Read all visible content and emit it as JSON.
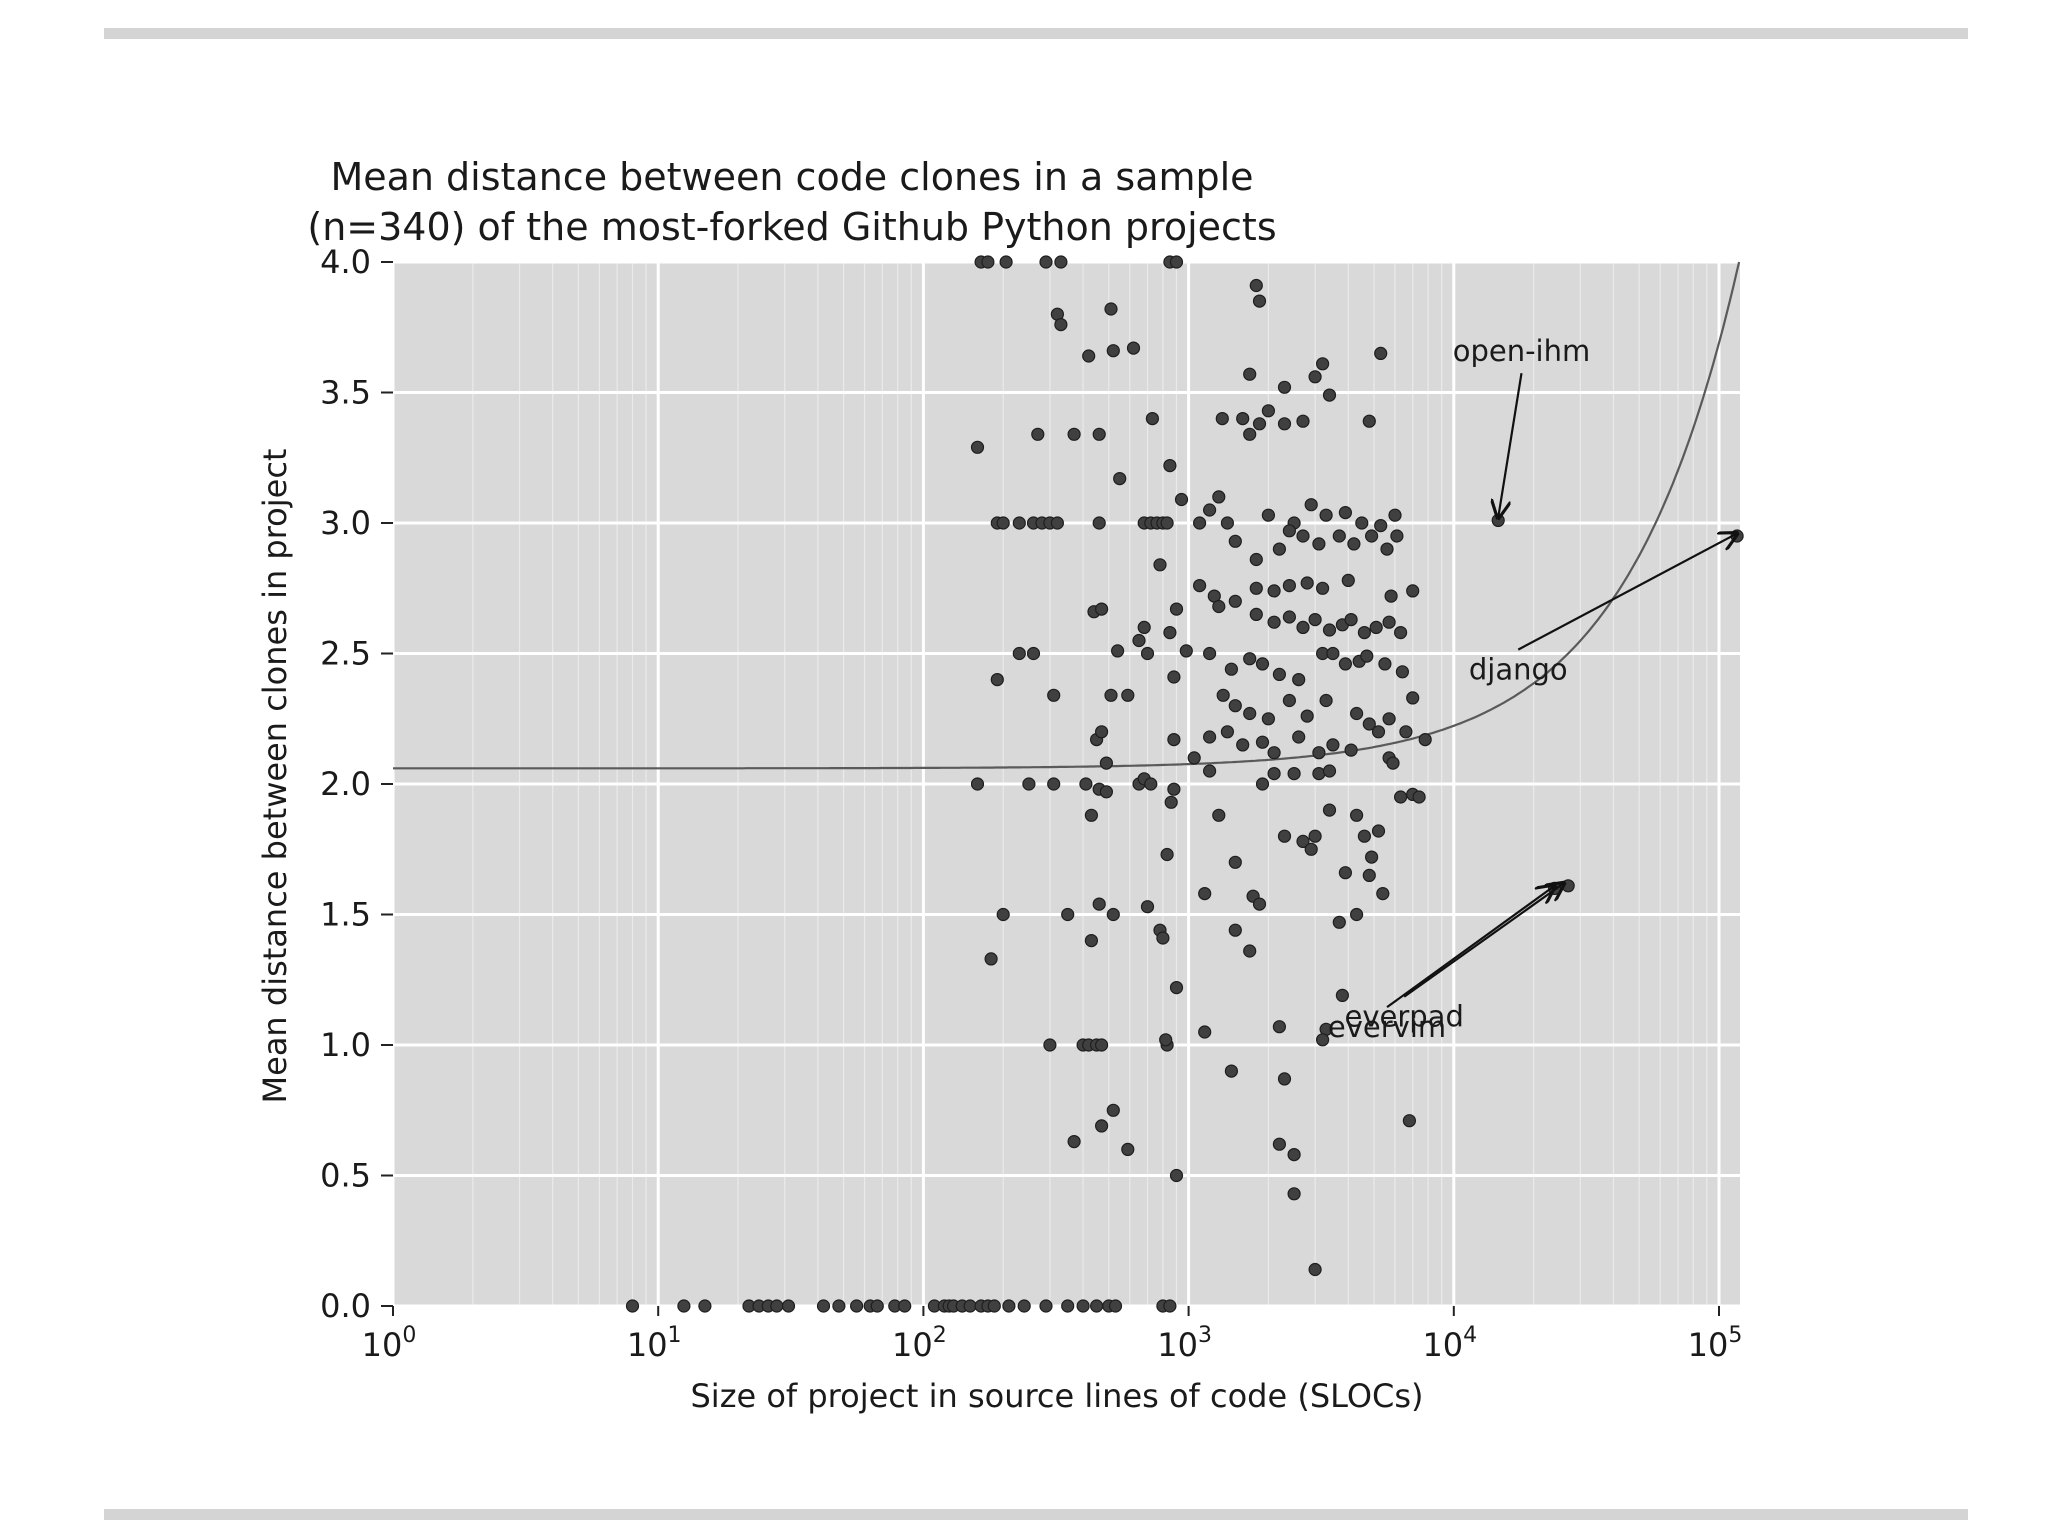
{
  "page": {
    "background": "#ffffff",
    "rule_color": "#d4d4d4"
  },
  "chart_data": {
    "type": "scatter",
    "title_lines": [
      "Mean distance between code clones in a sample",
      "(n=340) of the most-forked Github Python projects"
    ],
    "xlabel": "Size of project in source lines of code (SLOCs)",
    "ylabel": "Mean distance between clones in project",
    "xscale": "log",
    "xlim": [
      1,
      120000
    ],
    "ylim": [
      0,
      4
    ],
    "x_ticks": [
      {
        "value": 1,
        "base": "10",
        "exp": "0"
      },
      {
        "value": 10,
        "base": "10",
        "exp": "1"
      },
      {
        "value": 100,
        "base": "10",
        "exp": "2"
      },
      {
        "value": 1000,
        "base": "10",
        "exp": "3"
      },
      {
        "value": 10000,
        "base": "10",
        "exp": "4"
      },
      {
        "value": 100000,
        "base": "10",
        "exp": "5"
      }
    ],
    "y_ticks": [
      "0.0",
      "0.5",
      "1.0",
      "1.5",
      "2.0",
      "2.5",
      "3.0",
      "3.5",
      "4.0"
    ],
    "grid": true,
    "colors": {
      "plot_bg": "#d9d9d9",
      "grid": "#ffffff",
      "marker": "#404040",
      "marker_edge": "#1e1e1e",
      "curve": "#5a5a5a"
    },
    "trend_curve": {
      "intercept": 2.06,
      "slope": 1.63e-05
    },
    "points": [
      [
        8,
        0
      ],
      [
        12.5,
        0
      ],
      [
        15,
        0
      ],
      [
        22,
        0
      ],
      [
        24,
        0
      ],
      [
        26,
        0
      ],
      [
        28,
        0
      ],
      [
        31,
        0
      ],
      [
        42,
        0
      ],
      [
        48,
        0
      ],
      [
        56,
        0
      ],
      [
        63,
        0
      ],
      [
        67,
        0
      ],
      [
        78,
        0
      ],
      [
        85,
        0
      ],
      [
        110,
        0
      ],
      [
        120,
        0
      ],
      [
        125,
        0
      ],
      [
        130,
        0
      ],
      [
        140,
        0
      ],
      [
        150,
        0
      ],
      [
        165,
        0
      ],
      [
        175,
        0
      ],
      [
        185,
        0
      ],
      [
        210,
        0
      ],
      [
        240,
        0
      ],
      [
        290,
        0
      ],
      [
        350,
        0
      ],
      [
        400,
        0
      ],
      [
        450,
        0
      ],
      [
        500,
        0
      ],
      [
        530,
        0
      ],
      [
        800,
        0
      ],
      [
        850,
        0
      ],
      [
        165,
        4.0
      ],
      [
        175,
        4.0
      ],
      [
        205,
        4.0
      ],
      [
        290,
        4.0
      ],
      [
        330,
        4.0
      ],
      [
        850,
        4.0
      ],
      [
        900,
        4.0
      ],
      [
        1800,
        3.91
      ],
      [
        1850,
        3.85
      ],
      [
        510,
        3.82
      ],
      [
        320,
        3.8
      ],
      [
        330,
        3.76
      ],
      [
        420,
        3.64
      ],
      [
        620,
        3.67
      ],
      [
        3200,
        3.61
      ],
      [
        5300,
        3.65
      ],
      [
        1700,
        3.57
      ],
      [
        2300,
        3.52
      ],
      [
        3000,
        3.56
      ],
      [
        3400,
        3.49
      ],
      [
        520,
        3.66
      ],
      [
        160,
        3.29
      ],
      [
        270,
        3.34
      ],
      [
        370,
        3.34
      ],
      [
        460,
        3.34
      ],
      [
        550,
        3.17
      ],
      [
        730,
        3.4
      ],
      [
        850,
        3.22
      ],
      [
        1340,
        3.4
      ],
      [
        1600,
        3.4
      ],
      [
        1700,
        3.34
      ],
      [
        1850,
        3.38
      ],
      [
        2000,
        3.43
      ],
      [
        2300,
        3.38
      ],
      [
        2700,
        3.39
      ],
      [
        4800,
        3.39
      ],
      [
        190,
        3.0
      ],
      [
        200,
        3.0
      ],
      [
        230,
        3.0
      ],
      [
        260,
        3.0
      ],
      [
        280,
        3.0
      ],
      [
        300,
        3.0
      ],
      [
        320,
        3.0
      ],
      [
        460,
        3.0
      ],
      [
        680,
        3.0
      ],
      [
        720,
        3.0
      ],
      [
        760,
        3.0
      ],
      [
        800,
        3.0
      ],
      [
        830,
        3.0
      ],
      [
        940,
        3.09
      ],
      [
        1100,
        3.0
      ],
      [
        1200,
        3.05
      ],
      [
        1300,
        3.1
      ],
      [
        1400,
        3.0
      ],
      [
        2000,
        3.03
      ],
      [
        2500,
        3.0
      ],
      [
        2900,
        3.07
      ],
      [
        3300,
        3.03
      ],
      [
        3900,
        3.04
      ],
      [
        4500,
        3.0
      ],
      [
        5300,
        2.99
      ],
      [
        6000,
        3.03
      ],
      [
        14700,
        3.01
      ],
      [
        1500,
        2.93
      ],
      [
        1800,
        2.86
      ],
      [
        2200,
        2.9
      ],
      [
        2400,
        2.97
      ],
      [
        2700,
        2.95
      ],
      [
        3100,
        2.92
      ],
      [
        3700,
        2.95
      ],
      [
        4200,
        2.92
      ],
      [
        4900,
        2.95
      ],
      [
        5600,
        2.9
      ],
      [
        6100,
        2.95
      ],
      [
        780,
        2.84
      ],
      [
        1100,
        2.76
      ],
      [
        1250,
        2.72
      ],
      [
        1500,
        2.7
      ],
      [
        1800,
        2.75
      ],
      [
        2100,
        2.74
      ],
      [
        2400,
        2.76
      ],
      [
        2800,
        2.77
      ],
      [
        3200,
        2.75
      ],
      [
        4000,
        2.78
      ],
      [
        5800,
        2.72
      ],
      [
        7000,
        2.74
      ],
      [
        440,
        2.66
      ],
      [
        470,
        2.67
      ],
      [
        680,
        2.6
      ],
      [
        850,
        2.58
      ],
      [
        900,
        2.67
      ],
      [
        1300,
        2.68
      ],
      [
        1800,
        2.65
      ],
      [
        2100,
        2.62
      ],
      [
        2400,
        2.64
      ],
      [
        2700,
        2.6
      ],
      [
        3000,
        2.63
      ],
      [
        3400,
        2.59
      ],
      [
        3800,
        2.61
      ],
      [
        4100,
        2.63
      ],
      [
        4600,
        2.58
      ],
      [
        5100,
        2.6
      ],
      [
        5700,
        2.62
      ],
      [
        6300,
        2.58
      ],
      [
        230,
        2.5
      ],
      [
        260,
        2.5
      ],
      [
        540,
        2.51
      ],
      [
        650,
        2.55
      ],
      [
        700,
        2.5
      ],
      [
        880,
        2.41
      ],
      [
        980,
        2.51
      ],
      [
        1200,
        2.5
      ],
      [
        1450,
        2.44
      ],
      [
        1700,
        2.48
      ],
      [
        1900,
        2.46
      ],
      [
        2200,
        2.42
      ],
      [
        2600,
        2.4
      ],
      [
        3200,
        2.5
      ],
      [
        3500,
        2.5
      ],
      [
        3900,
        2.46
      ],
      [
        4400,
        2.47
      ],
      [
        4700,
        2.49
      ],
      [
        5500,
        2.46
      ],
      [
        6400,
        2.43
      ],
      [
        190,
        2.4
      ],
      [
        310,
        2.34
      ],
      [
        510,
        2.34
      ],
      [
        590,
        2.34
      ],
      [
        1350,
        2.34
      ],
      [
        1500,
        2.3
      ],
      [
        1700,
        2.27
      ],
      [
        2000,
        2.25
      ],
      [
        2400,
        2.32
      ],
      [
        2800,
        2.26
      ],
      [
        3300,
        2.32
      ],
      [
        4300,
        2.27
      ],
      [
        4800,
        2.23
      ],
      [
        5700,
        2.25
      ],
      [
        7000,
        2.33
      ],
      [
        450,
        2.17
      ],
      [
        470,
        2.2
      ],
      [
        490,
        2.08
      ],
      [
        880,
        2.17
      ],
      [
        1050,
        2.1
      ],
      [
        1200,
        2.18
      ],
      [
        1400,
        2.2
      ],
      [
        1600,
        2.15
      ],
      [
        1900,
        2.16
      ],
      [
        2100,
        2.12
      ],
      [
        2600,
        2.18
      ],
      [
        3100,
        2.12
      ],
      [
        3500,
        2.15
      ],
      [
        4100,
        2.13
      ],
      [
        5200,
        2.2
      ],
      [
        5700,
        2.1
      ],
      [
        6600,
        2.2
      ],
      [
        7800,
        2.17
      ],
      [
        160,
        2.0
      ],
      [
        250,
        2.0
      ],
      [
        310,
        2.0
      ],
      [
        410,
        2.0
      ],
      [
        460,
        1.98
      ],
      [
        490,
        1.97
      ],
      [
        650,
        2.0
      ],
      [
        680,
        2.02
      ],
      [
        720,
        2.0
      ],
      [
        880,
        1.98
      ],
      [
        860,
        1.93
      ],
      [
        1200,
        2.05
      ],
      [
        1900,
        2.0
      ],
      [
        2100,
        2.04
      ],
      [
        2500,
        2.04
      ],
      [
        3100,
        2.04
      ],
      [
        3400,
        2.05
      ],
      [
        5900,
        2.08
      ],
      [
        6300,
        1.95
      ],
      [
        7000,
        1.96
      ],
      [
        7400,
        1.95
      ],
      [
        430,
        1.88
      ],
      [
        1300,
        1.88
      ],
      [
        3400,
        1.9
      ],
      [
        4300,
        1.88
      ],
      [
        2300,
        1.8
      ],
      [
        2700,
        1.78
      ],
      [
        2900,
        1.75
      ],
      [
        3000,
        1.8
      ],
      [
        4600,
        1.8
      ],
      [
        5200,
        1.82
      ],
      [
        830,
        1.73
      ],
      [
        1500,
        1.7
      ],
      [
        3900,
        1.66
      ],
      [
        4800,
        1.65
      ],
      [
        4900,
        1.72
      ],
      [
        5400,
        1.58
      ],
      [
        200,
        1.5
      ],
      [
        350,
        1.5
      ],
      [
        460,
        1.54
      ],
      [
        520,
        1.5
      ],
      [
        700,
        1.53
      ],
      [
        780,
        1.44
      ],
      [
        800,
        1.41
      ],
      [
        1150,
        1.58
      ],
      [
        1500,
        1.44
      ],
      [
        1750,
        1.57
      ],
      [
        1850,
        1.54
      ],
      [
        1700,
        1.36
      ],
      [
        3700,
        1.47
      ],
      [
        4300,
        1.5
      ],
      [
        180,
        1.33
      ],
      [
        430,
        1.4
      ],
      [
        900,
        1.22
      ],
      [
        24000,
        1.6
      ],
      [
        27000,
        1.61
      ],
      [
        3300,
        1.06
      ],
      [
        3200,
        1.02
      ],
      [
        3800,
        1.19
      ],
      [
        300,
        1.0
      ],
      [
        400,
        1.0
      ],
      [
        420,
        1.0
      ],
      [
        450,
        1.0
      ],
      [
        470,
        1.0
      ],
      [
        830,
        1.0
      ],
      [
        820,
        1.02
      ],
      [
        1150,
        1.05
      ],
      [
        2200,
        1.07
      ],
      [
        2300,
        0.87
      ],
      [
        1450,
        0.9
      ],
      [
        370,
        0.63
      ],
      [
        470,
        0.69
      ],
      [
        520,
        0.75
      ],
      [
        590,
        0.6
      ],
      [
        2200,
        0.62
      ],
      [
        2500,
        0.58
      ],
      [
        900,
        0.5
      ],
      [
        2500,
        0.43
      ],
      [
        6800,
        0.71
      ],
      [
        3000,
        0.14
      ],
      [
        117000,
        2.95
      ]
    ],
    "annotations": [
      {
        "text": "open-ihm",
        "label_x": 18000,
        "label_y": 3.62,
        "target_x": 14700,
        "target_y": 3.02
      },
      {
        "text": "django",
        "label_x": 17500,
        "label_y": 2.4,
        "target_x": 117000,
        "target_y": 2.96
      },
      {
        "text": "evervim",
        "label_x": 5600,
        "label_y": 1.03,
        "target_x": 24000,
        "target_y": 1.61
      },
      {
        "text": "everpad",
        "label_x": 6500,
        "label_y": 1.07,
        "target_x": 26000,
        "target_y": 1.62
      }
    ]
  }
}
